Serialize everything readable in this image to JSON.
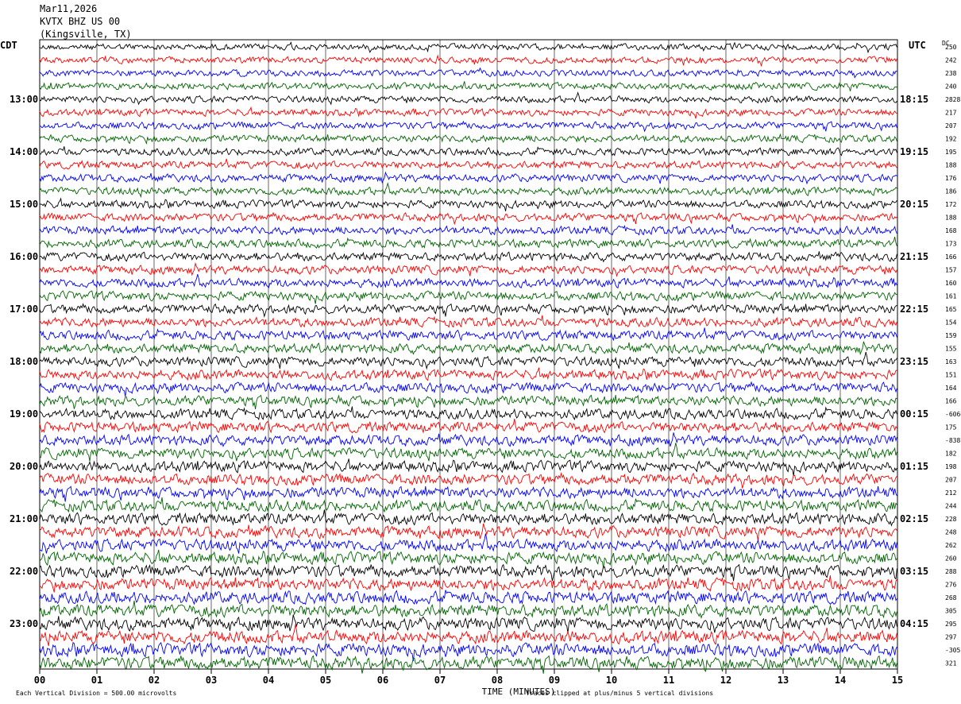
{
  "header": {
    "date": "Mar11,2026",
    "station": "KVTX BHZ US 00",
    "location": "(Kingsville, TX)"
  },
  "left_label": "CDT",
  "right_label": "UTC",
  "dc_label": "DC",
  "footer": {
    "scale_note": "Each Vertical Division =  500.00 microvolts",
    "xlabel": "TIME (MINUTES)",
    "clip_note": "Traces clipped at plus/minus 5 vertical divisions"
  },
  "chart_data": {
    "type": "line",
    "title": "Mar11,2026 KVTX BHZ US 00 (Kingsville, TX)",
    "xlabel": "TIME (MINUTES)",
    "xlim": [
      0,
      15
    ],
    "x_ticks": [
      "00",
      "01",
      "02",
      "03",
      "04",
      "05",
      "06",
      "07",
      "08",
      "09",
      "10",
      "11",
      "12",
      "13",
      "14",
      "15"
    ],
    "grid": true,
    "trace_colors": [
      "#000000",
      "#ff0000",
      "#0000ff",
      "#006400"
    ],
    "trace_count": 48,
    "trace_minutes": 15,
    "left_hour_labels": [
      "13:00",
      "14:00",
      "15:00",
      "16:00",
      "17:00",
      "18:00",
      "19:00",
      "20:00",
      "21:00",
      "22:00",
      "23:00"
    ],
    "right_hour_labels": [
      "18:15",
      "19:15",
      "20:15",
      "21:15",
      "22:15",
      "23:15",
      "00:15",
      "01:15",
      "02:15",
      "03:15",
      "04:15"
    ],
    "dc_values": [
      "250",
      "242",
      "238",
      "240",
      "2828",
      "217",
      "207",
      "192",
      "195",
      "188",
      "176",
      "186",
      "172",
      "188",
      "168",
      "173",
      "166",
      "157",
      "160",
      "161",
      "165",
      "154",
      "159",
      "155",
      "163",
      "151",
      "164",
      "166",
      "-60662",
      "175",
      "-838",
      "182",
      "198",
      "207",
      "212",
      "244",
      "228",
      "248",
      "262",
      "260",
      "288",
      "276",
      "268",
      "305",
      "295",
      "297",
      "-305",
      "321"
    ]
  }
}
